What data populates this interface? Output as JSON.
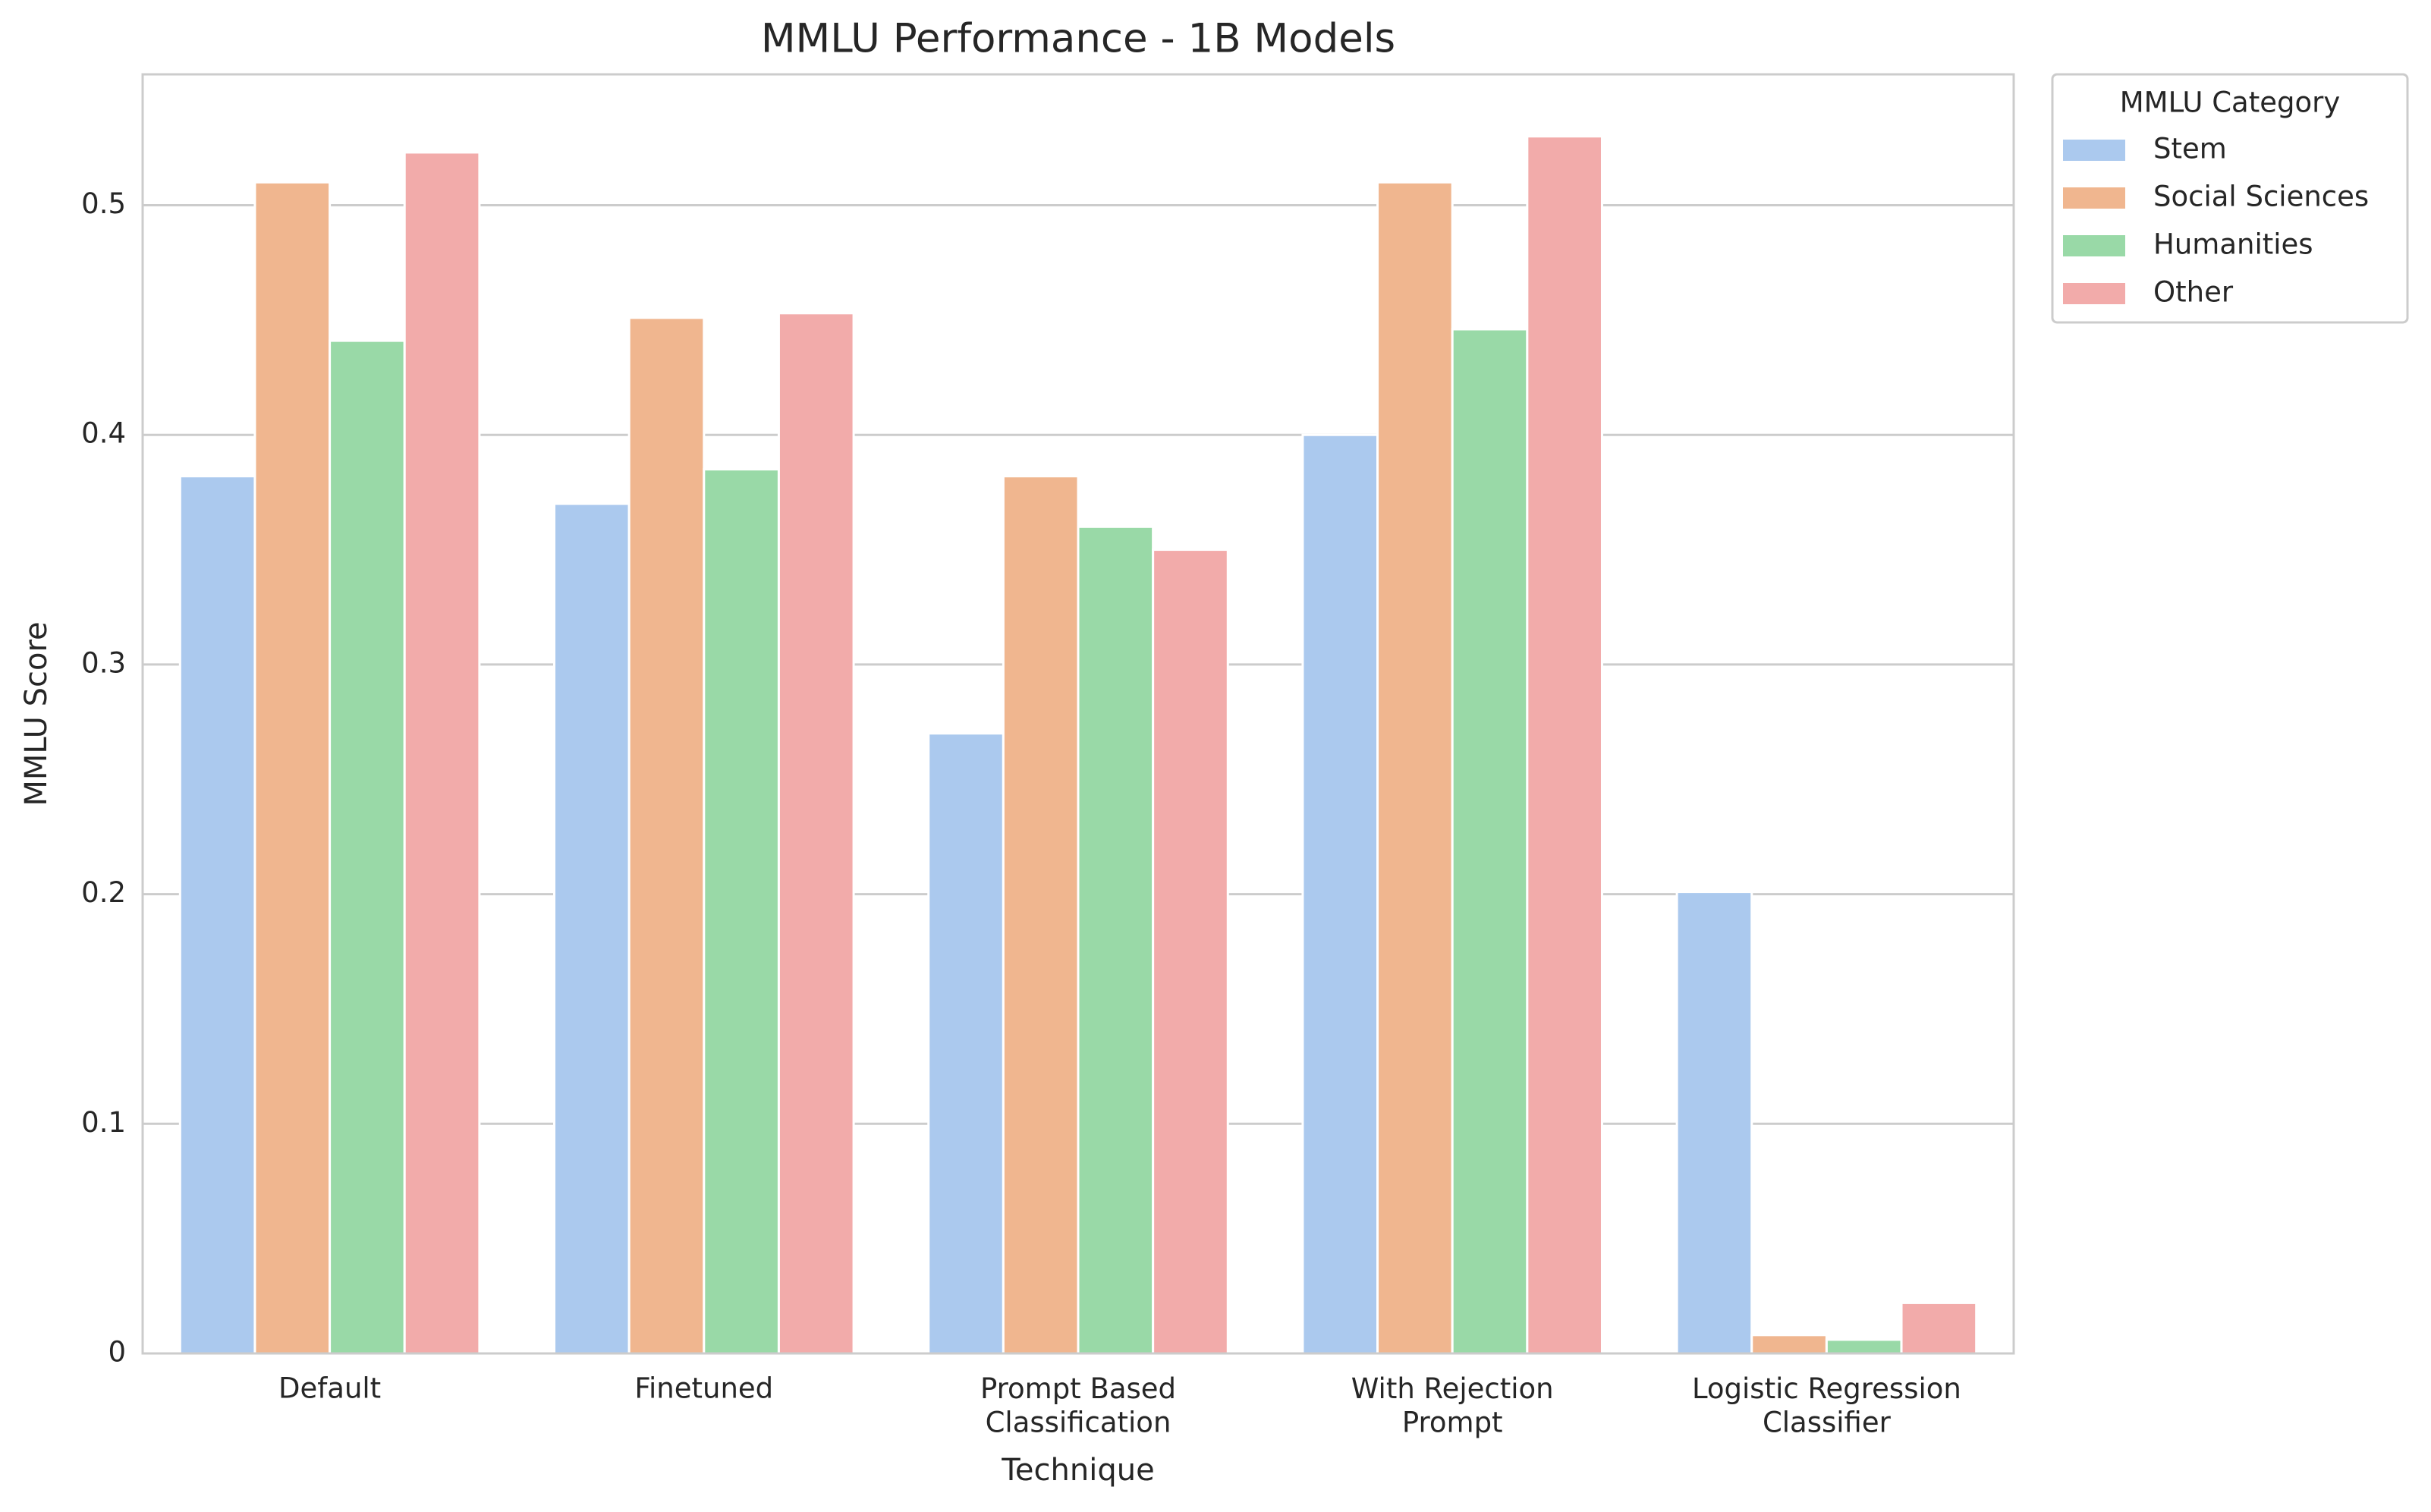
{
  "chart_data": {
    "type": "bar",
    "title": "MMLU Performance - 1B Models",
    "x_label": "Technique",
    "y_label": "MMLU Score",
    "categories": [
      "Default",
      "Finetuned",
      "Prompt Based\nClassification",
      "With Rejection\nPrompt",
      "Logistic Regression\nClassifier"
    ],
    "series": [
      {
        "name": "Stem",
        "color": "#abc9ee",
        "values": [
          0.382,
          0.37,
          0.27,
          0.4,
          0.201
        ]
      },
      {
        "name": "Social Sciences",
        "color": "#f0b68f",
        "values": [
          0.51,
          0.451,
          0.382,
          0.51,
          0.008
        ]
      },
      {
        "name": "Humanities",
        "color": "#99d9a7",
        "values": [
          0.441,
          0.385,
          0.36,
          0.446,
          0.006
        ]
      },
      {
        "name": "Other",
        "color": "#f2abaa",
        "values": [
          0.523,
          0.453,
          0.35,
          0.53,
          0.022
        ]
      }
    ],
    "legend_title": "MMLU Category",
    "legend_position": "outside-upper-right",
    "ylim": [
      0,
      0.557
    ],
    "yticks": [
      0.0,
      0.1,
      0.2,
      0.3,
      0.4,
      0.5
    ],
    "grid": true
  }
}
